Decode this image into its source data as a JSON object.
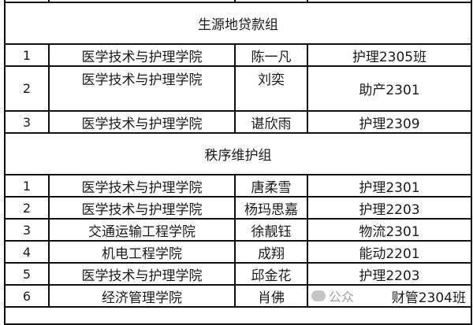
{
  "groups": [
    {
      "title": "生源地贷款组",
      "rows": [
        {
          "no": "1",
          "college": "医学技术与护理学院",
          "name": "陈一凡",
          "class": "护理2305班"
        },
        {
          "no": "2",
          "college": "医学技术与护理学院",
          "name": "刘奕",
          "class": "助产2301"
        },
        {
          "no": "3",
          "college": "医学技术与护理学院",
          "name": "谌欣雨",
          "class": "护理2309"
        }
      ]
    },
    {
      "title": "秩序维护组",
      "rows": [
        {
          "no": "1",
          "college": "医学技术与护理学院",
          "name": "唐柔雪",
          "class": "护理2301"
        },
        {
          "no": "2",
          "college": "医学技术与护理学院",
          "name": "杨玛思嘉",
          "class": "护理2203"
        },
        {
          "no": "3",
          "college": "交通运输工程学院",
          "name": "徐靓钰",
          "class": "物流2301"
        },
        {
          "no": "4",
          "college": "机电工程学院",
          "name": "成翔",
          "class": "能动2201"
        },
        {
          "no": "5",
          "college": "医学技术与护理学院",
          "name": "邱金花",
          "class": "护理2203"
        },
        {
          "no": "6",
          "college": "经济管理学院",
          "name": "肖佛",
          "class": "财管2304班"
        }
      ]
    }
  ],
  "watermark": "公众"
}
